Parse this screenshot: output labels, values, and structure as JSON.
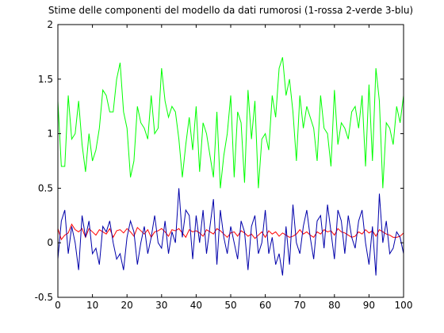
{
  "chart_data": {
    "type": "line",
    "title": "Stime delle componenti del modello da dati rumorosi (1-rossa 2-verde 3-blu)",
    "xlabel": "",
    "ylabel": "",
    "xlim": [
      0,
      100
    ],
    "ylim": [
      -0.5,
      2
    ],
    "xticks": [
      0,
      10,
      20,
      30,
      40,
      50,
      60,
      70,
      80,
      90,
      100
    ],
    "xtick_labels": [
      "0",
      "10",
      "20",
      "30",
      "40",
      "50",
      "60",
      "70",
      "80",
      "90",
      "100"
    ],
    "yticks": [
      -0.5,
      0,
      0.5,
      1,
      1.5,
      2
    ],
    "ytick_labels": [
      "-0.5",
      "0",
      "0.5",
      "1",
      "1.5",
      "2"
    ],
    "grid": false,
    "legend": "none",
    "x": [
      0,
      1,
      2,
      3,
      4,
      5,
      6,
      7,
      8,
      9,
      10,
      11,
      12,
      13,
      14,
      15,
      16,
      17,
      18,
      19,
      20,
      21,
      22,
      23,
      24,
      25,
      26,
      27,
      28,
      29,
      30,
      31,
      32,
      33,
      34,
      35,
      36,
      37,
      38,
      39,
      40,
      41,
      42,
      43,
      44,
      45,
      46,
      47,
      48,
      49,
      50,
      51,
      52,
      53,
      54,
      55,
      56,
      57,
      58,
      59,
      60,
      61,
      62,
      63,
      64,
      65,
      66,
      67,
      68,
      69,
      70,
      71,
      72,
      73,
      74,
      75,
      76,
      77,
      78,
      79,
      80,
      81,
      82,
      83,
      84,
      85,
      86,
      87,
      88,
      89,
      90,
      91,
      92,
      93,
      94,
      95,
      96,
      97,
      98,
      99,
      100
    ],
    "series": [
      {
        "name": "1",
        "color": "#ff0000",
        "values": [
          0.13,
          0.03,
          0.07,
          0.09,
          0.17,
          0.12,
          0.1,
          0.13,
          0.05,
          0.13,
          0.1,
          0.07,
          0.12,
          0.1,
          0.08,
          0.13,
          0.05,
          0.11,
          0.12,
          0.09,
          0.13,
          0.1,
          0.06,
          0.14,
          0.11,
          0.08,
          0.12,
          0.05,
          0.1,
          0.11,
          0.13,
          0.1,
          0.06,
          0.12,
          0.11,
          0.13,
          0.09,
          0.05,
          0.12,
          0.1,
          0.11,
          0.09,
          0.06,
          0.12,
          0.1,
          0.08,
          0.13,
          0.11,
          0.08,
          0.05,
          0.09,
          0.1,
          0.06,
          0.11,
          0.09,
          0.06,
          0.08,
          0.04,
          0.07,
          0.1,
          0.05,
          0.11,
          0.08,
          0.1,
          0.06,
          0.09,
          0.07,
          0.05,
          0.06,
          0.08,
          0.12,
          0.08,
          0.1,
          0.07,
          0.05,
          0.1,
          0.08,
          0.12,
          0.1,
          0.11,
          0.07,
          0.13,
          0.1,
          0.09,
          0.07,
          0.05,
          0.06,
          0.1,
          0.08,
          0.12,
          0.09,
          0.11,
          0.06,
          0.12,
          0.1,
          0.08,
          0.07,
          0.05,
          0.05,
          0.06,
          0.09
        ]
      },
      {
        "name": "2",
        "color": "#00ff00",
        "values": [
          1.3,
          0.7,
          0.7,
          1.35,
          0.95,
          1.0,
          1.3,
          0.9,
          0.65,
          1.0,
          0.75,
          0.85,
          1.05,
          1.4,
          1.35,
          1.2,
          1.2,
          1.5,
          1.65,
          1.2,
          1.05,
          0.6,
          0.75,
          1.25,
          1.1,
          1.05,
          0.95,
          1.35,
          1.0,
          1.05,
          1.6,
          1.3,
          1.15,
          1.25,
          1.2,
          0.95,
          0.6,
          0.9,
          1.15,
          0.85,
          1.25,
          0.65,
          1.1,
          1.0,
          0.8,
          0.6,
          1.2,
          0.5,
          0.8,
          1.0,
          1.35,
          0.6,
          1.2,
          1.1,
          0.55,
          1.4,
          0.95,
          1.3,
          0.5,
          0.95,
          1.0,
          0.85,
          1.35,
          1.15,
          1.6,
          1.7,
          1.35,
          1.5,
          1.2,
          0.75,
          1.35,
          1.05,
          1.25,
          1.15,
          1.05,
          0.75,
          1.35,
          1.05,
          1.0,
          0.7,
          1.4,
          0.9,
          1.1,
          1.05,
          0.95,
          1.2,
          1.25,
          1.05,
          1.35,
          0.7,
          1.45,
          0.75,
          1.6,
          1.3,
          0.5,
          1.1,
          1.05,
          0.9,
          1.25,
          1.1,
          1.35
        ]
      },
      {
        "name": "3",
        "color": "#0000aa",
        "values": [
          -0.15,
          0.2,
          0.3,
          -0.1,
          0.15,
          0.0,
          -0.25,
          0.25,
          0.05,
          0.2,
          -0.1,
          -0.05,
          -0.2,
          0.15,
          0.1,
          0.2,
          0.0,
          -0.15,
          -0.1,
          -0.25,
          0.05,
          0.2,
          0.1,
          -0.2,
          0.0,
          0.15,
          -0.1,
          0.05,
          0.25,
          0.0,
          -0.05,
          0.2,
          -0.1,
          0.1,
          0.0,
          0.5,
          0.05,
          0.3,
          0.25,
          -0.15,
          0.25,
          0.0,
          0.3,
          -0.1,
          0.15,
          0.4,
          -0.2,
          0.3,
          0.05,
          -0.1,
          0.15,
          0.0,
          -0.15,
          0.2,
          0.1,
          -0.25,
          0.15,
          0.25,
          -0.1,
          0.0,
          0.3,
          -0.1,
          0.05,
          -0.2,
          -0.1,
          -0.3,
          0.15,
          -0.2,
          0.35,
          0.0,
          -0.1,
          0.15,
          0.3,
          0.05,
          -0.15,
          0.2,
          0.25,
          -0.05,
          0.35,
          0.1,
          -0.15,
          0.3,
          0.2,
          -0.1,
          0.25,
          0.05,
          -0.05,
          0.2,
          0.3,
          0.0,
          -0.2,
          0.15,
          -0.3,
          0.45,
          0.0,
          0.2,
          -0.1,
          -0.05,
          0.1,
          0.05,
          -0.1
        ]
      }
    ]
  }
}
